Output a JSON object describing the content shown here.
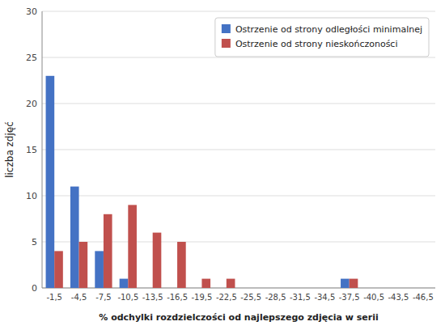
{
  "chart_data": {
    "type": "bar",
    "categories": [
      "-1,5",
      "-4,5",
      "-7,5",
      "-10,5",
      "-13,5",
      "-16,5",
      "-19,5",
      "-22,5",
      "-25,5",
      "-28,5",
      "-31,5",
      "-34,5",
      "-37,5",
      "-40,5",
      "-43,5",
      "-46,5"
    ],
    "series": [
      {
        "name": "Ostrzenie od strony odległości minimalnej",
        "color": "#4472C4",
        "values": [
          23,
          11,
          4,
          1,
          0,
          0,
          0,
          0,
          0,
          0,
          0,
          0,
          1,
          0,
          0,
          0
        ]
      },
      {
        "name": "Ostrzenie od strony nieskończoności",
        "color": "#C0504D",
        "values": [
          4,
          5,
          8,
          9,
          6,
          5,
          1,
          1,
          0,
          0,
          0,
          0,
          1,
          0,
          0,
          0
        ]
      }
    ],
    "xlabel": "% odchylki rozdzielczości od najlepszego zdjęcia w serii",
    "ylabel": "liczba zdjęć",
    "ylim": [
      0,
      30
    ],
    "yticks": [
      0,
      5,
      10,
      15,
      20,
      25,
      30
    ],
    "grid": true,
    "legend": "upper right"
  }
}
